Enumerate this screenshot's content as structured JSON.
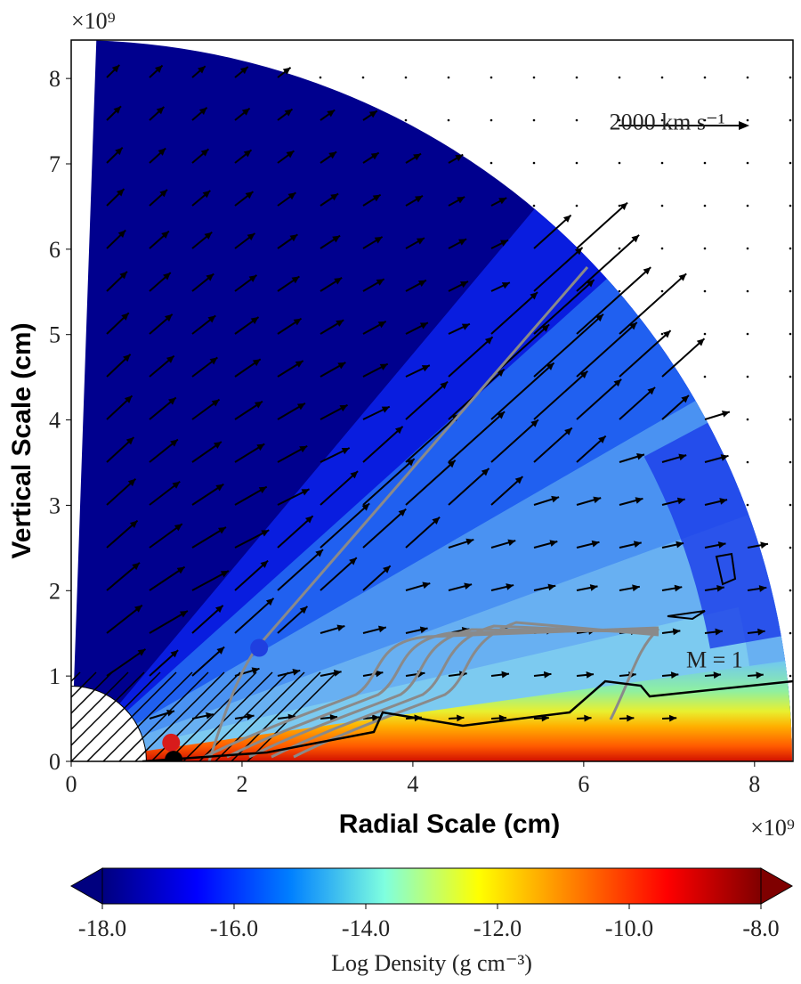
{
  "chart_data": {
    "type": "density-map",
    "xlabel": "Radial Scale (cm)",
    "ylabel": "Vertical  Scale (cm)",
    "x_offset_label": "×10⁹",
    "y_offset_label": "×10⁹",
    "xlim": [
      0,
      8.45
    ],
    "ylim": [
      0,
      8.45
    ],
    "xticks": [
      0,
      2,
      4,
      6,
      8
    ],
    "yticks": [
      0,
      1,
      2,
      3,
      4,
      5,
      6,
      7,
      8
    ],
    "annotations": [
      {
        "text": "2000 km s⁻¹",
        "x": 6.3,
        "y": 7.4
      },
      {
        "text": "M = 1",
        "x": 7.2,
        "y": 1.1
      }
    ],
    "points": [
      {
        "x": 2.2,
        "y": 1.33,
        "color": "#1f3fe0"
      },
      {
        "x": 1.17,
        "y": 0.22,
        "color": "#d81b1b"
      },
      {
        "x": 1.2,
        "y": 0.02,
        "color": "#000000"
      }
    ],
    "colorbar": {
      "label": "Log Density (g cm⁻³)",
      "lim": [
        -18,
        -8
      ],
      "ticks": [
        {
          "value": -18,
          "label": "-18.0"
        },
        {
          "value": -16,
          "label": "-16.0"
        },
        {
          "value": -14,
          "label": "-14.0"
        },
        {
          "value": -12,
          "label": "-12.0"
        },
        {
          "value": -10,
          "label": "-10.0"
        },
        {
          "value": -8,
          "label": "-8.0"
        }
      ],
      "colors": [
        "#00007f",
        "#0000ff",
        "#0080ff",
        "#7fffdf",
        "#ffff00",
        "#ff8000",
        "#ff0000",
        "#7f0000"
      ]
    }
  }
}
